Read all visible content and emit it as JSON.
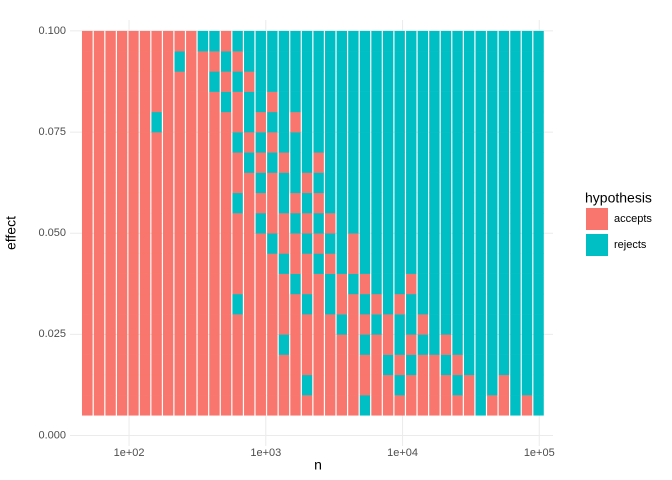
{
  "chart_data": {
    "type": "heatmap",
    "x_label": "n",
    "y_label": "effect",
    "legend_title": "hypothesis",
    "x_log": true,
    "grid": true,
    "legend_position": "right",
    "xlim": [
      37,
      126000
    ],
    "ylim": [
      -0.0026,
      0.1027
    ],
    "xticks": [
      {
        "value": 100,
        "label": "1e+02"
      },
      {
        "value": 1000,
        "label": "1e+03"
      },
      {
        "value": 10000,
        "label": "1e+04"
      },
      {
        "value": 100000,
        "label": "1e+05"
      }
    ],
    "yticks": [
      {
        "value": 0,
        "label": "0.000"
      },
      {
        "value": 0.025,
        "label": "0.025"
      },
      {
        "value": 0.05,
        "label": "0.050"
      },
      {
        "value": 0.075,
        "label": "0.075"
      },
      {
        "value": 0.1,
        "label": "0.100"
      }
    ],
    "series": [
      {
        "name": "accepts",
        "color": "#F8766D"
      },
      {
        "name": "rejects",
        "color": "#00BFC4"
      }
    ],
    "x": [
      50,
      61,
      74,
      90,
      109,
      132,
      161,
      195,
      237,
      288,
      350,
      426,
      517,
      629,
      764,
      928,
      1128,
      1371,
      1666,
      2024,
      2460,
      2989,
      3633,
      4415,
      5365,
      6520,
      7923,
      9628,
      11700,
      14218,
      17278,
      20997,
      25515,
      31006,
      37679,
      45788,
      55642,
      67617,
      82168,
      99851
    ],
    "y": [
      0.0075,
      0.0125,
      0.0175,
      0.0225,
      0.0275,
      0.0325,
      0.0375,
      0.0425,
      0.0475,
      0.0525,
      0.0575,
      0.0625,
      0.0675,
      0.0725,
      0.0775,
      0.0825,
      0.0875,
      0.0925,
      0.0975
    ],
    "z": [
      [
        0,
        0,
        0,
        0,
        0,
        0,
        0,
        0,
        0,
        0,
        0,
        0,
        0,
        0,
        0,
        0,
        0,
        0,
        0,
        0,
        0,
        0,
        0,
        0,
        1,
        0,
        0,
        0,
        0,
        0,
        0,
        0,
        0,
        0,
        1,
        0,
        0,
        1,
        0,
        1
      ],
      [
        0,
        0,
        0,
        0,
        0,
        0,
        0,
        0,
        0,
        0,
        0,
        0,
        0,
        0,
        0,
        0,
        0,
        0,
        0,
        1,
        0,
        0,
        0,
        0,
        0,
        0,
        0,
        1,
        0,
        0,
        0,
        0,
        1,
        0,
        1,
        1,
        0,
        1,
        1,
        1
      ],
      [
        0,
        0,
        0,
        0,
        0,
        0,
        0,
        0,
        0,
        0,
        0,
        0,
        0,
        0,
        0,
        0,
        0,
        0,
        0,
        0,
        0,
        0,
        0,
        0,
        0,
        0,
        1,
        0,
        1,
        0,
        0,
        1,
        0,
        1,
        1,
        1,
        1,
        1,
        1,
        1
      ],
      [
        0,
        0,
        0,
        0,
        0,
        0,
        0,
        0,
        0,
        0,
        0,
        0,
        0,
        0,
        0,
        0,
        0,
        1,
        0,
        0,
        0,
        0,
        0,
        0,
        1,
        0,
        0,
        1,
        0,
        1,
        1,
        0,
        1,
        1,
        1,
        1,
        1,
        1,
        1,
        1
      ],
      [
        0,
        0,
        0,
        0,
        0,
        0,
        0,
        0,
        0,
        0,
        0,
        0,
        0,
        0,
        0,
        0,
        0,
        0,
        0,
        0,
        0,
        0,
        1,
        0,
        0,
        1,
        0,
        1,
        1,
        0,
        1,
        1,
        1,
        1,
        1,
        1,
        1,
        1,
        1,
        1
      ],
      [
        0,
        0,
        0,
        0,
        0,
        0,
        0,
        0,
        0,
        0,
        0,
        0,
        0,
        1,
        0,
        0,
        0,
        0,
        0,
        1,
        0,
        1,
        0,
        0,
        1,
        0,
        1,
        0,
        1,
        1,
        1,
        1,
        1,
        1,
        1,
        1,
        1,
        1,
        1,
        1
      ],
      [
        0,
        0,
        0,
        0,
        0,
        0,
        0,
        0,
        0,
        0,
        0,
        0,
        0,
        0,
        0,
        0,
        0,
        0,
        1,
        0,
        0,
        1,
        0,
        1,
        0,
        1,
        1,
        1,
        0,
        1,
        1,
        1,
        1,
        1,
        1,
        1,
        1,
        1,
        1,
        1
      ],
      [
        0,
        0,
        0,
        0,
        0,
        0,
        0,
        0,
        0,
        0,
        0,
        0,
        0,
        0,
        0,
        0,
        0,
        1,
        0,
        0,
        1,
        0,
        1,
        0,
        1,
        1,
        1,
        1,
        1,
        1,
        1,
        1,
        1,
        1,
        1,
        1,
        1,
        1,
        1,
        1
      ],
      [
        0,
        0,
        0,
        0,
        0,
        0,
        0,
        0,
        0,
        0,
        0,
        0,
        0,
        0,
        0,
        0,
        1,
        0,
        0,
        1,
        0,
        1,
        1,
        0,
        1,
        1,
        1,
        1,
        1,
        1,
        1,
        1,
        1,
        1,
        1,
        1,
        1,
        1,
        1,
        1
      ],
      [
        0,
        0,
        0,
        0,
        0,
        0,
        0,
        0,
        0,
        0,
        0,
        0,
        0,
        0,
        0,
        1,
        0,
        0,
        1,
        0,
        1,
        0,
        1,
        1,
        1,
        1,
        1,
        1,
        1,
        1,
        1,
        1,
        1,
        1,
        1,
        1,
        1,
        1,
        1,
        1
      ],
      [
        0,
        0,
        0,
        0,
        0,
        0,
        0,
        0,
        0,
        0,
        0,
        0,
        0,
        1,
        0,
        0,
        0,
        1,
        0,
        1,
        0,
        1,
        1,
        1,
        1,
        1,
        1,
        1,
        1,
        1,
        1,
        1,
        1,
        1,
        1,
        1,
        1,
        1,
        1,
        1
      ],
      [
        0,
        0,
        0,
        0,
        0,
        0,
        0,
        0,
        0,
        0,
        0,
        0,
        0,
        0,
        0,
        1,
        0,
        1,
        1,
        0,
        1,
        1,
        1,
        1,
        1,
        1,
        1,
        1,
        1,
        1,
        1,
        1,
        1,
        1,
        1,
        1,
        1,
        1,
        1,
        1
      ],
      [
        0,
        0,
        0,
        0,
        0,
        0,
        0,
        0,
        0,
        0,
        0,
        0,
        0,
        0,
        1,
        0,
        1,
        0,
        1,
        1,
        0,
        1,
        1,
        1,
        1,
        1,
        1,
        1,
        1,
        1,
        1,
        1,
        1,
        1,
        1,
        1,
        1,
        1,
        1,
        1
      ],
      [
        0,
        0,
        0,
        0,
        0,
        0,
        0,
        0,
        0,
        0,
        0,
        0,
        0,
        1,
        0,
        1,
        0,
        1,
        1,
        1,
        1,
        1,
        1,
        1,
        1,
        1,
        1,
        1,
        1,
        1,
        1,
        1,
        1,
        1,
        1,
        1,
        1,
        1,
        1,
        1
      ],
      [
        0,
        0,
        0,
        0,
        0,
        0,
        1,
        0,
        0,
        0,
        0,
        0,
        0,
        0,
        1,
        0,
        1,
        1,
        0,
        1,
        1,
        1,
        1,
        1,
        1,
        1,
        1,
        1,
        1,
        1,
        1,
        1,
        1,
        1,
        1,
        1,
        1,
        1,
        1,
        1
      ],
      [
        0,
        0,
        0,
        0,
        0,
        0,
        0,
        0,
        0,
        0,
        0,
        0,
        1,
        0,
        1,
        1,
        0,
        1,
        1,
        1,
        1,
        1,
        1,
        1,
        1,
        1,
        1,
        1,
        1,
        1,
        1,
        1,
        1,
        1,
        1,
        1,
        1,
        1,
        1,
        1
      ],
      [
        0,
        0,
        0,
        0,
        0,
        0,
        0,
        0,
        0,
        0,
        0,
        1,
        0,
        1,
        0,
        1,
        1,
        1,
        1,
        1,
        1,
        1,
        1,
        1,
        1,
        1,
        1,
        1,
        1,
        1,
        1,
        1,
        1,
        1,
        1,
        1,
        1,
        1,
        1,
        1
      ],
      [
        0,
        0,
        0,
        0,
        0,
        0,
        0,
        0,
        1,
        0,
        0,
        0,
        1,
        0,
        1,
        1,
        1,
        1,
        1,
        1,
        1,
        1,
        1,
        1,
        1,
        1,
        1,
        1,
        1,
        1,
        1,
        1,
        1,
        1,
        1,
        1,
        1,
        1,
        1,
        1
      ],
      [
        0,
        0,
        0,
        0,
        0,
        0,
        0,
        0,
        0,
        0,
        1,
        1,
        0,
        1,
        1,
        1,
        1,
        1,
        1,
        1,
        1,
        1,
        1,
        1,
        1,
        1,
        1,
        1,
        1,
        1,
        1,
        1,
        1,
        1,
        1,
        1,
        1,
        1,
        1,
        1
      ]
    ]
  }
}
